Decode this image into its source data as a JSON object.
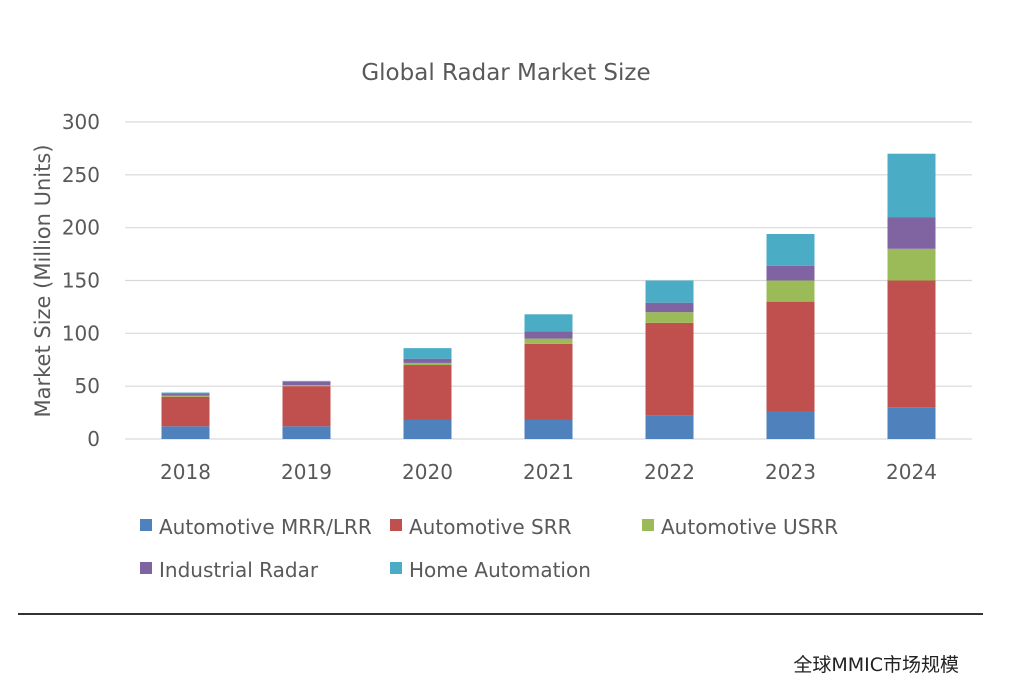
{
  "chart_data": {
    "type": "bar",
    "stacked": true,
    "title": "Global Radar Market Size",
    "xlabel": "",
    "ylabel": "Market Size (Million Units)",
    "ylim": [
      0,
      300
    ],
    "yticks": [
      0,
      50,
      100,
      150,
      200,
      250,
      300
    ],
    "categories": [
      "2018",
      "2019",
      "2020",
      "2021",
      "2022",
      "2023",
      "2024"
    ],
    "grid": true,
    "legend_position": "bottom",
    "series": [
      {
        "name": "Automotive MRR/LRR",
        "color": "#4f81bd",
        "values": [
          12,
          12,
          18,
          18,
          22,
          26,
          30
        ]
      },
      {
        "name": "Automotive SRR",
        "color": "#c0504d",
        "values": [
          28,
          38,
          52,
          72,
          88,
          104,
          120
        ]
      },
      {
        "name": "Automotive USRR",
        "color": "#9bbb59",
        "values": [
          1,
          1,
          2,
          5,
          10,
          20,
          30
        ]
      },
      {
        "name": "Industrial Radar",
        "color": "#8064a2",
        "values": [
          2,
          3,
          4,
          7,
          9,
          14,
          30
        ]
      },
      {
        "name": "Home Automation",
        "color": "#4bacc6",
        "values": [
          1,
          1,
          10,
          16,
          21,
          30,
          60
        ]
      }
    ]
  },
  "caption": "全球MMIC市场规模"
}
